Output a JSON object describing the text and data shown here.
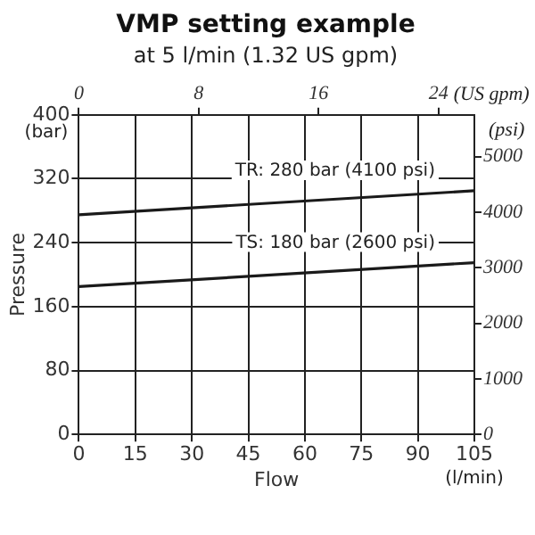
{
  "chart_data": {
    "type": "line",
    "title": "VMP setting example",
    "subtitle": "at 5 l/min (1.32 US gpm)",
    "xlabel": "Flow",
    "ylabel": "Pressure",
    "y2label": "(psi)",
    "x2label": "(US gpm)",
    "annotations": [
      "(l/min)",
      "(bar)"
    ],
    "x": [
      0,
      105
    ],
    "series": [
      {
        "name": "TR: 280 bar (4100 psi)",
        "color": "#1a1a1a",
        "values": [
          275,
          305
        ]
      },
      {
        "name": "TS: 180 bar (2600 psi)",
        "color": "#1a1a1a",
        "values": [
          185,
          215
        ]
      }
    ],
    "xlim": [
      0,
      105
    ],
    "xticks": [
      0,
      15,
      30,
      45,
      60,
      75,
      90,
      105
    ],
    "ylim": [
      0,
      400
    ],
    "yticks": [
      0,
      80,
      160,
      240,
      320,
      400
    ],
    "x2lim": [
      0,
      26.4
    ],
    "x2ticks": [
      0,
      8,
      16,
      24
    ],
    "y2lim": [
      0,
      5750
    ],
    "y2ticks": [
      0,
      1000,
      2000,
      3000,
      4000,
      5000
    ],
    "grid": true,
    "legend": false,
    "marker": "none",
    "line_style": "solid"
  }
}
